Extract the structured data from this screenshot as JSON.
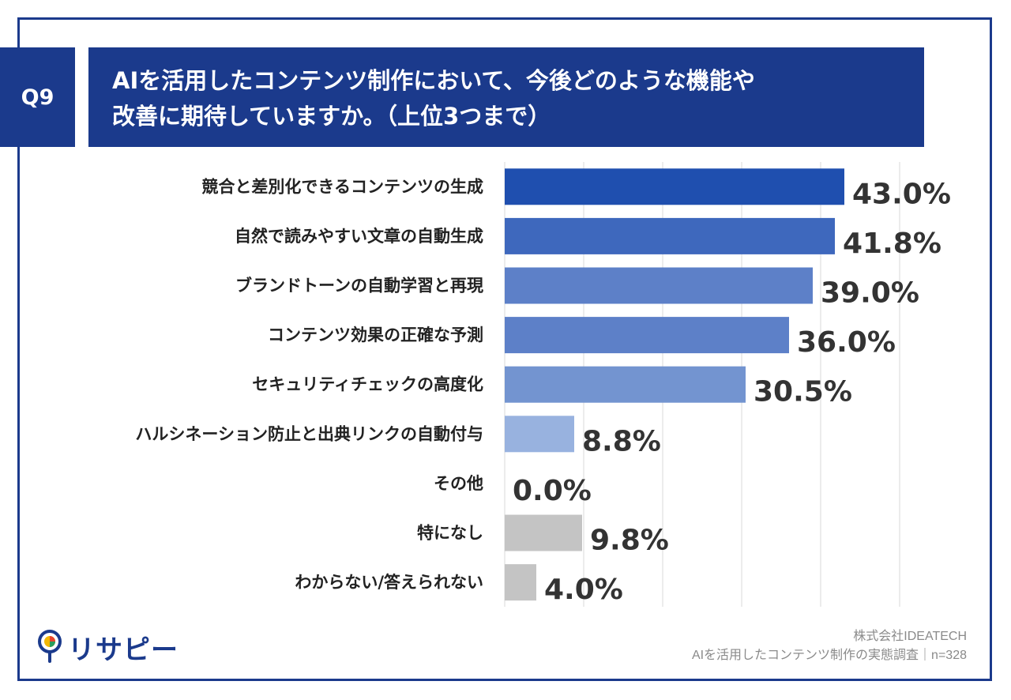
{
  "header": {
    "badge": "Q9",
    "title_line1": "AIを活用したコンテンツ制作において、今後どのような機能や",
    "title_line2": "改善に期待していますか。（上位3つまで）"
  },
  "chart_data": {
    "type": "bar",
    "orientation": "horizontal",
    "categories": [
      "競合と差別化できるコンテンツの生成",
      "自然で読みやすい文章の自動生成",
      "ブランドトーンの自動学習と再現",
      "コンテンツ効果の正確な予測",
      "セキュリティチェックの高度化",
      "ハルシネーション防止と出典リンクの自動付与",
      "その他",
      "特になし",
      "わからない/答えられない"
    ],
    "values": [
      43.0,
      41.8,
      39.0,
      36.0,
      30.5,
      8.8,
      0.0,
      9.8,
      4.0
    ],
    "value_labels": [
      "43.0%",
      "41.8%",
      "39.0%",
      "36.0%",
      "30.5%",
      "8.8%",
      "0.0%",
      "9.8%",
      "4.0%"
    ],
    "bar_colors": [
      "#1f4faf",
      "#3e68bd",
      "#5d80c8",
      "#5d80c8",
      "#7394d0",
      "#98b2df",
      "#c4c4c4",
      "#c4c4c4",
      "#c4c4c4"
    ],
    "xlim": [
      0,
      50
    ],
    "grid": true,
    "title": "",
    "xlabel": "",
    "ylabel": ""
  },
  "footer": {
    "logo_text": "リサピー",
    "company": "株式会社IDEATECH",
    "survey": "AIを活用したコンテンツ制作の実態調査｜n=328"
  }
}
